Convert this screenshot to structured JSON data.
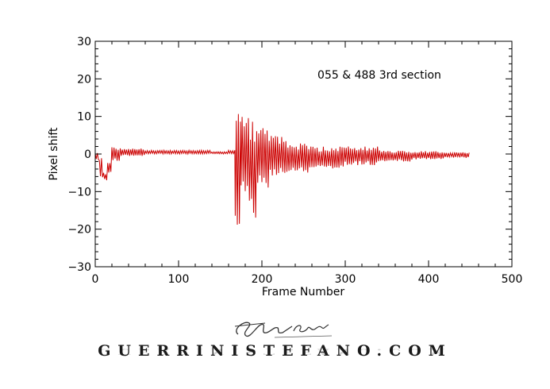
{
  "chart_data": {
    "type": "line",
    "title": "",
    "annotation": "055 & 488  3rd section",
    "xlabel": "Frame Number",
    "ylabel": "Pixel shift",
    "xlim": [
      0,
      500
    ],
    "ylim": [
      -30,
      30
    ],
    "xticks": [
      0,
      100,
      200,
      300,
      400,
      500
    ],
    "xtick_labels": [
      "0",
      "100",
      "200",
      "300",
      "400",
      "500"
    ],
    "yticks": [
      -30,
      -20,
      -10,
      0,
      10,
      20,
      30
    ],
    "ytick_labels": [
      "−30",
      "−20",
      "−10",
      "0",
      "10",
      "20",
      "30"
    ],
    "grid": false,
    "legend": "none",
    "series": [
      {
        "color": "#cc0000",
        "segments": [
          {
            "x_start": 0,
            "x_end": 5,
            "min": -1.5,
            "max": 0.5
          },
          {
            "x_start": 5,
            "x_end": 10,
            "min": -7,
            "max": -1
          },
          {
            "x_start": 10,
            "x_end": 15,
            "min": -7,
            "max": -5
          },
          {
            "x_start": 15,
            "x_end": 20,
            "min": -5,
            "max": -2
          },
          {
            "x_start": 20,
            "x_end": 30,
            "min": -2,
            "max": 2
          },
          {
            "x_start": 30,
            "x_end": 60,
            "min": -0.5,
            "max": 1.5
          },
          {
            "x_start": 60,
            "x_end": 100,
            "min": 0,
            "max": 1
          },
          {
            "x_start": 100,
            "x_end": 140,
            "min": 0,
            "max": 1
          },
          {
            "x_start": 140,
            "x_end": 160,
            "min": 0,
            "max": 0.6
          },
          {
            "x_start": 160,
            "x_end": 168,
            "min": 0,
            "max": 1
          },
          {
            "x_start": 168,
            "x_end": 175,
            "min": -20,
            "max": 12
          },
          {
            "x_start": 175,
            "x_end": 185,
            "min": -10,
            "max": 10
          },
          {
            "x_start": 185,
            "x_end": 195,
            "min": -18,
            "max": 9
          },
          {
            "x_start": 195,
            "x_end": 210,
            "min": -9,
            "max": 7
          },
          {
            "x_start": 210,
            "x_end": 230,
            "min": -6,
            "max": 5
          },
          {
            "x_start": 230,
            "x_end": 260,
            "min": -5,
            "max": 3
          },
          {
            "x_start": 260,
            "x_end": 300,
            "min": -4,
            "max": 2
          },
          {
            "x_start": 300,
            "x_end": 340,
            "min": -3,
            "max": 2
          },
          {
            "x_start": 340,
            "x_end": 380,
            "min": -2,
            "max": 1
          },
          {
            "x_start": 380,
            "x_end": 420,
            "min": -1.5,
            "max": 0.8
          },
          {
            "x_start": 420,
            "x_end": 450,
            "min": -1,
            "max": 0.5
          }
        ]
      }
    ]
  },
  "footer": {
    "website": "GUERRINISTEFANO.COM"
  }
}
